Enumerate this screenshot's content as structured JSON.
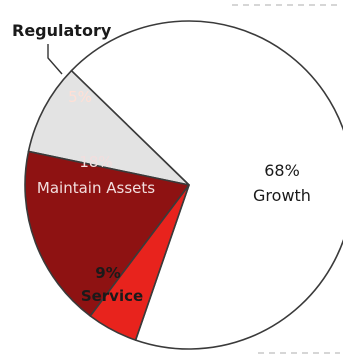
{
  "chart_data": {
    "type": "pie",
    "start_angle_deg": 251,
    "direction": "counterclockwise",
    "slices": [
      {
        "label": "Growth",
        "value": 68,
        "value_label": "68%",
        "color": "#ffffff",
        "text_color": "#1a1a1a"
      },
      {
        "label": "Service",
        "value": 9,
        "value_label": "9%",
        "color": "#e3e3e3",
        "text_color": "#1a1a1a"
      },
      {
        "label": "Maintain Assets",
        "value": 18,
        "value_label": "18%",
        "color": "#8e1212",
        "text_color": "#f2dede"
      },
      {
        "label": "Regulatory",
        "value": 5,
        "value_label": "5%",
        "color": "#e8231d",
        "text_color": "#ffe0d6"
      }
    ],
    "outline_color": "#3a3a3a"
  }
}
